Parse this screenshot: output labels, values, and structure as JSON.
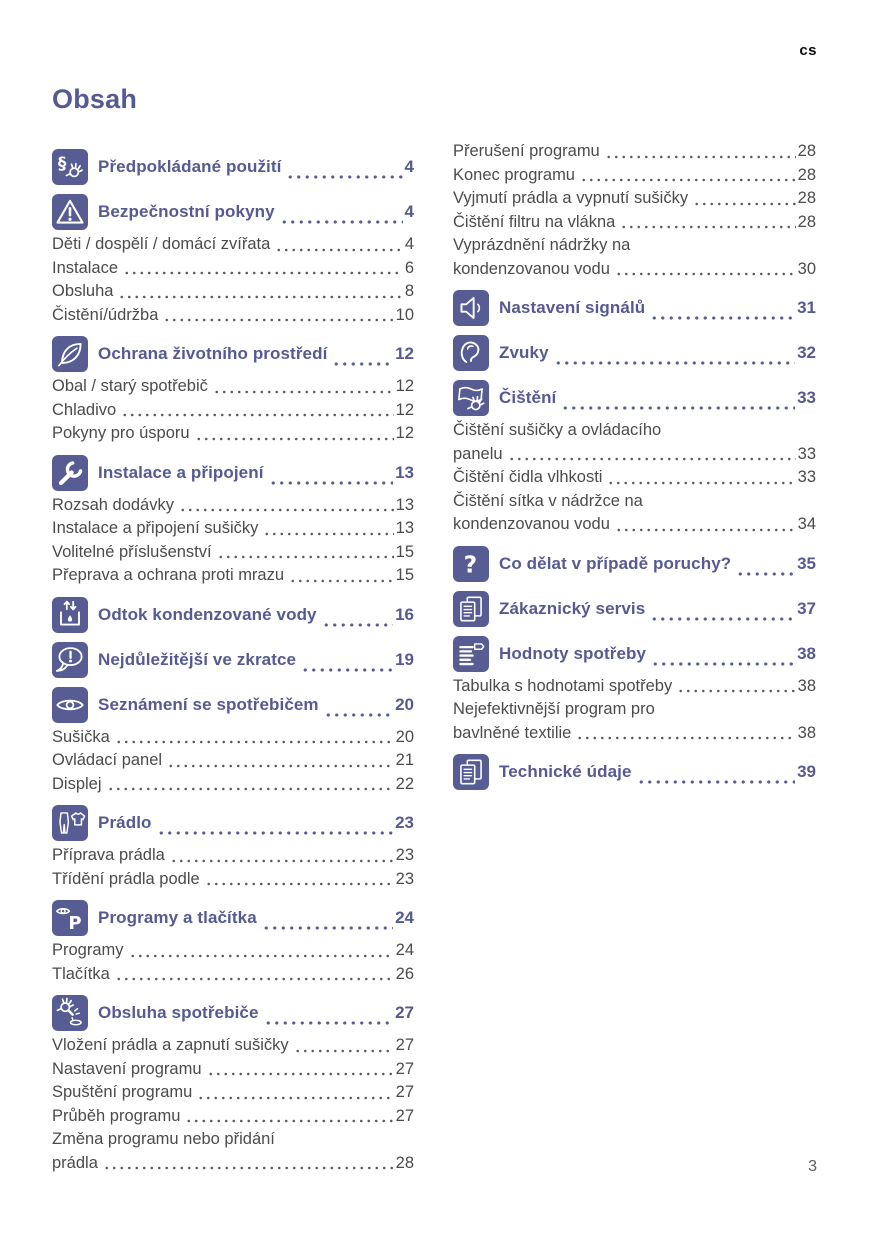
{
  "page": {
    "lang_code": "cs",
    "title": "Obsah",
    "page_number": "3"
  },
  "colors": {
    "accent": "#575c92",
    "body_text": "#4b4b4d",
    "background": "#ffffff"
  },
  "toc": {
    "left": [
      {
        "icon": "intended-use-icon",
        "title": "Předpokládané použití",
        "page": "4",
        "entries": []
      },
      {
        "icon": "warning-triangle-icon",
        "title": "Bezpečnostní pokyny",
        "page": "4",
        "entries": [
          {
            "label_lines": [
              "Děti / dospělí / domácí zvířata"
            ],
            "page": "4"
          },
          {
            "label_lines": [
              "Instalace"
            ],
            "page": "6"
          },
          {
            "label_lines": [
              "Obsluha"
            ],
            "page": "8"
          },
          {
            "label_lines": [
              "Čistění/údržba"
            ],
            "page": "10"
          }
        ]
      },
      {
        "icon": "eco-leaf-icon",
        "title": "Ochrana životního prostředí",
        "page": "12",
        "entries": [
          {
            "label_lines": [
              "Obal / starý spotřebič"
            ],
            "page": "12"
          },
          {
            "label_lines": [
              "Chladivo"
            ],
            "page": "12"
          },
          {
            "label_lines": [
              "Pokyny pro úsporu"
            ],
            "page": "12"
          }
        ]
      },
      {
        "icon": "wrench-icon",
        "title": "Instalace a připojení",
        "page": "13",
        "entries": [
          {
            "label_lines": [
              "Rozsah dodávky"
            ],
            "page": "13"
          },
          {
            "label_lines": [
              "Instalace a připojení sušičky"
            ],
            "page": "13"
          },
          {
            "label_lines": [
              "Volitelné příslušenství"
            ],
            "page": "15"
          },
          {
            "label_lines": [
              "Přeprava a ochrana proti mrazu"
            ],
            "page": "15"
          }
        ]
      },
      {
        "icon": "condensate-drain-icon",
        "title": "Odtok kondenzované vody",
        "page": "16",
        "entries": []
      },
      {
        "icon": "speech-bubble-icon",
        "title": "Nejdůležitější ve zkratce",
        "page": "19",
        "entries": []
      },
      {
        "icon": "eye-icon",
        "title": "Seznámení se spotřebičem",
        "page": "20",
        "entries": [
          {
            "label_lines": [
              "Sušička"
            ],
            "page": "20"
          },
          {
            "label_lines": [
              "Ovládací panel"
            ],
            "page": "21"
          },
          {
            "label_lines": [
              "Displej"
            ],
            "page": "22"
          }
        ]
      },
      {
        "icon": "laundry-icon",
        "title": "Prádlo",
        "page": "23",
        "entries": [
          {
            "label_lines": [
              "Příprava prádla"
            ],
            "page": "23"
          },
          {
            "label_lines": [
              "Třídění prádla podle"
            ],
            "page": "23"
          }
        ]
      },
      {
        "icon": "programs-icon",
        "title": "Programy a tlačítka",
        "page": "24",
        "entries": [
          {
            "label_lines": [
              "Programy"
            ],
            "page": "24"
          },
          {
            "label_lines": [
              "Tlačítka"
            ],
            "page": "26"
          }
        ]
      },
      {
        "icon": "hand-operation-icon",
        "title": "Obsluha spotřebiče",
        "page": "27",
        "entries": [
          {
            "label_lines": [
              "Vložení prádla a zapnutí sušičky"
            ],
            "page": "27"
          },
          {
            "label_lines": [
              "Nastavení programu"
            ],
            "page": "27"
          },
          {
            "label_lines": [
              "Spuštění programu"
            ],
            "page": "27"
          },
          {
            "label_lines": [
              "Průběh programu"
            ],
            "page": "27"
          },
          {
            "label_lines": [
              "Změna programu nebo přidání",
              "prádla"
            ],
            "page": "28"
          }
        ]
      }
    ],
    "right": [
      {
        "icon": null,
        "title": null,
        "page": null,
        "entries": [
          {
            "label_lines": [
              "Přerušení programu"
            ],
            "page": "28"
          },
          {
            "label_lines": [
              "Konec programu"
            ],
            "page": "28"
          },
          {
            "label_lines": [
              "Vyjmutí prádla a vypnutí sušičky"
            ],
            "page": "28"
          },
          {
            "label_lines": [
              "Čištění filtru na vlákna"
            ],
            "page": "28"
          },
          {
            "label_lines": [
              "Vyprázdnění nádržky na",
              "kondenzovanou vodu"
            ],
            "page": "30"
          }
        ]
      },
      {
        "icon": "speaker-icon",
        "title": "Nastavení signálů",
        "page": "31",
        "entries": []
      },
      {
        "icon": "ear-icon",
        "title": "Zvuky",
        "page": "32",
        "entries": []
      },
      {
        "icon": "cleaning-icon",
        "title": "Čištění",
        "page": "33",
        "entries": [
          {
            "label_lines": [
              "Čištění sušičky a ovládacího",
              "panelu"
            ],
            "page": "33"
          },
          {
            "label_lines": [
              "Čištění čidla vlhkosti"
            ],
            "page": "33"
          },
          {
            "label_lines": [
              "Čištění sítka v nádržce na",
              "kondenzovanou vodu"
            ],
            "page": "34"
          }
        ]
      },
      {
        "icon": "question-icon",
        "title": "Co dělat v případě poruchy?",
        "page": "35",
        "entries": []
      },
      {
        "icon": "document-icon",
        "title": "Zákaznický servis",
        "page": "37",
        "entries": []
      },
      {
        "icon": "consumption-table-icon",
        "title": "Hodnoty spotřeby",
        "page": "38",
        "entries": [
          {
            "label_lines": [
              "Tabulka s hodnotami spotřeby"
            ],
            "page": "38"
          },
          {
            "label_lines": [
              "Nejefektivnější program pro",
              "bavlněné textilie"
            ],
            "page": "38"
          }
        ]
      },
      {
        "icon": "document-icon",
        "title": "Technické údaje",
        "page": "39",
        "entries": []
      }
    ]
  }
}
